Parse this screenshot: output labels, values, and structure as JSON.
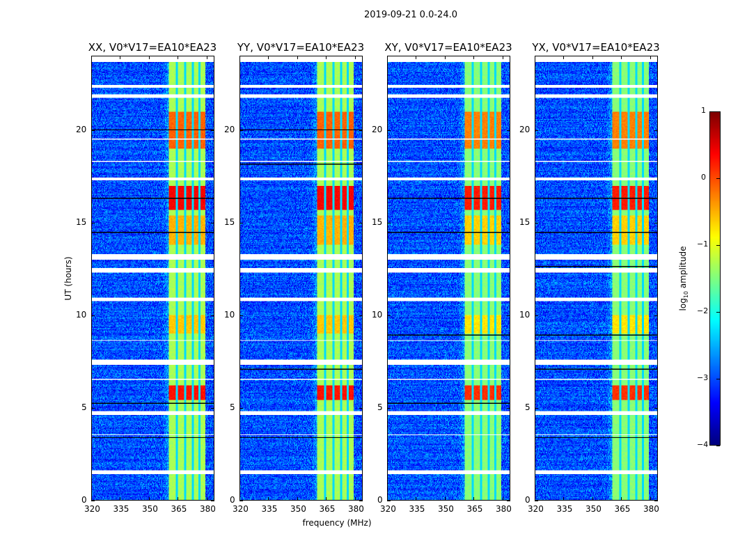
{
  "chart_data": {
    "type": "heatmap",
    "title": "2019-09-21 0.0-24.0",
    "xlabel": "frequency (MHz)",
    "ylabel": "UT (hours)",
    "xlim": [
      320,
      384
    ],
    "ylim": [
      0,
      24
    ],
    "xticks": [
      320,
      335,
      350,
      365,
      380
    ],
    "yticks": [
      0,
      5,
      10,
      15,
      20
    ],
    "panels": [
      {
        "title": "XX, V0*V17=EA10*EA23"
      },
      {
        "title": "YY, V0*V17=EA10*EA23"
      },
      {
        "title": "XY, V0*V17=EA10*EA23"
      },
      {
        "title": "YX, V0*V17=EA10*EA23"
      }
    ],
    "colorbar": {
      "label": "log",
      "label_sub": "10",
      "label_rest": " amplitude",
      "colormap": "jet",
      "range": [
        -4,
        1
      ],
      "ticks": [
        1,
        0,
        -1,
        -2,
        -3,
        -4
      ],
      "tick_labels": [
        "1",
        "0",
        "−1",
        "−2",
        "−3",
        "−4"
      ]
    },
    "background_level": -3.0,
    "band": {
      "range_mhz": [
        360.5,
        379.5
      ],
      "level": -1.3,
      "dark_stripes_mhz": [
        364.7,
        368.9,
        373.0,
        376.6
      ]
    },
    "hot_intervals_hours": [
      [
        19.0,
        21.0,
        -0.1
      ],
      [
        15.7,
        17.0,
        0.4
      ],
      [
        5.4,
        6.2,
        0.3
      ],
      [
        9.0,
        10.0,
        -0.6
      ],
      [
        13.8,
        15.4,
        -0.5
      ]
    ],
    "flagged_hours": [
      [
        23.7,
        24.0
      ],
      [
        22.3,
        22.45
      ],
      [
        21.75,
        21.95
      ],
      [
        17.3,
        17.45
      ],
      [
        13.0,
        13.3
      ],
      [
        12.3,
        12.55
      ],
      [
        10.75,
        10.95
      ],
      [
        7.3,
        7.6
      ],
      [
        4.6,
        4.8
      ],
      [
        1.4,
        1.6
      ],
      [
        18.3,
        18.35
      ],
      [
        19.5,
        19.55
      ],
      [
        3.5,
        3.55
      ],
      [
        6.5,
        6.55
      ],
      [
        8.6,
        8.65
      ]
    ]
  }
}
